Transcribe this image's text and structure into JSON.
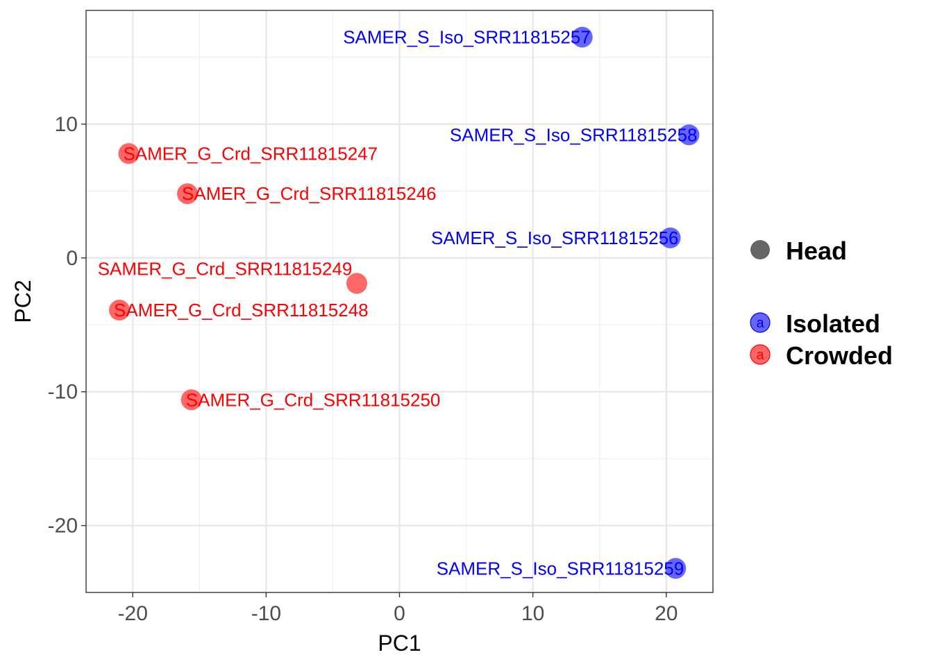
{
  "chart_data": {
    "type": "scatter",
    "xlabel": "PC1",
    "ylabel": "PC2",
    "xlim": [
      -23.5,
      23.5
    ],
    "ylim": [
      -25,
      18.5
    ],
    "x_ticks": [
      -20,
      -10,
      0,
      10,
      20
    ],
    "y_ticks": [
      -20,
      -10,
      0,
      10
    ],
    "x_tick_labels": [
      "-20",
      "-10",
      "0",
      "10",
      "20"
    ],
    "y_tick_labels": [
      "-20",
      "-10",
      "0",
      "10"
    ],
    "grid": true,
    "legend_position": "right",
    "colors": {
      "Isolated": "#6666ff",
      "Crowded": "#ff6666",
      "Isolated_text": "#0000ff",
      "Crowded_text": "#ff0000",
      "shape": "#666666"
    },
    "legend": {
      "shape_entries": [
        "Head"
      ],
      "color_entries": [
        "Isolated",
        "Crowded"
      ],
      "key_glyph": "a"
    },
    "points": [
      {
        "label": "SAMER_S_Iso_SRR11815257",
        "group": "Isolated",
        "x": 13.7,
        "y": 16.5,
        "anchor": "end"
      },
      {
        "label": "SAMER_S_Iso_SRR11815258",
        "group": "Isolated",
        "x": 21.7,
        "y": 9.2,
        "anchor": "end"
      },
      {
        "label": "SAMER_S_Iso_SRR11815256",
        "group": "Isolated",
        "x": 20.3,
        "y": 1.5,
        "anchor": "end"
      },
      {
        "label": "SAMER_S_Iso_SRR11815259",
        "group": "Isolated",
        "x": 20.7,
        "y": -23.2,
        "anchor": "end"
      },
      {
        "label": "SAMER_G_Crd_SRR11815247",
        "group": "Crowded",
        "x": -20.3,
        "y": 7.8,
        "anchor": "start"
      },
      {
        "label": "SAMER_G_Crd_SRR11815246",
        "group": "Crowded",
        "x": -15.9,
        "y": 4.8,
        "anchor": "start"
      },
      {
        "label": "SAMER_G_Crd_SRR11815249",
        "group": "Crowded",
        "x": -3.2,
        "y": -1.9,
        "anchor": "above"
      },
      {
        "label": "SAMER_G_Crd_SRR11815248",
        "group": "Crowded",
        "x": -21.0,
        "y": -3.9,
        "anchor": "start"
      },
      {
        "label": "SAMER_G_Crd_SRR11815250",
        "group": "Crowded",
        "x": -15.6,
        "y": -10.6,
        "anchor": "start"
      }
    ]
  }
}
